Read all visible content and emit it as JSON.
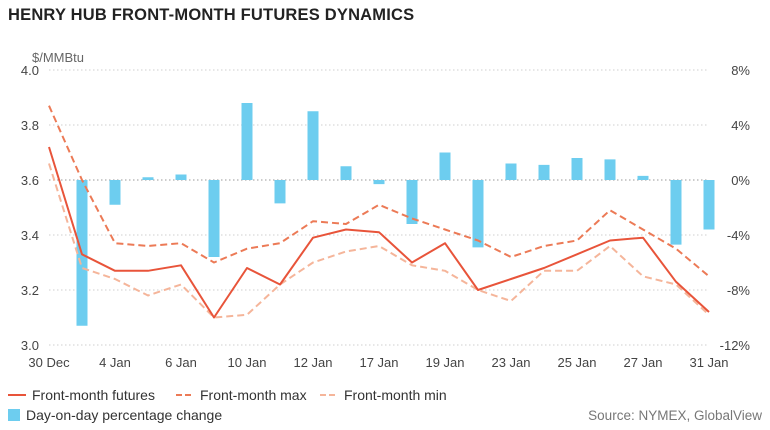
{
  "title": "HENRY HUB FRONT-MONTH FUTURES DYNAMICS",
  "unit_label": "$/MMBtu",
  "source": "Source: NYMEX, GlobalView",
  "colors": {
    "futures": "#e8543a",
    "max": "#ec7a56",
    "min": "#f5b59a",
    "bars": "#6dcdef",
    "grid": "#cfcfcf",
    "zero": "#999999"
  },
  "legend": {
    "futures": "Front-month futures",
    "max": "Front-month max",
    "min": "Front-month min",
    "bars": "Day-on-day percentage change"
  },
  "chart_data": {
    "type": "line",
    "x_tick_labels": [
      "30 Dec",
      "4 Jan",
      "6 Jan",
      "10 Jan",
      "12 Jan",
      "17 Jan",
      "19 Jan",
      "23 Jan",
      "25 Jan",
      "27 Jan",
      "31 Jan"
    ],
    "x_tick_index": [
      0,
      2,
      4,
      6,
      8,
      10,
      12,
      14,
      16,
      18,
      20
    ],
    "point_count": 21,
    "y_left": {
      "min": 3.0,
      "max": 4.0,
      "ticks": [
        "3.0",
        "3.2",
        "3.4",
        "3.6",
        "3.8",
        "4.0"
      ]
    },
    "y_right": {
      "min": -12,
      "max": 8,
      "ticks": [
        "-12%",
        "-8%",
        "-4%",
        "0%",
        "4%",
        "8%"
      ]
    },
    "series": [
      {
        "name": "Front-month futures",
        "axis": "left",
        "values": [
          3.72,
          3.33,
          3.27,
          3.27,
          3.29,
          3.1,
          3.28,
          3.22,
          3.39,
          3.42,
          3.41,
          3.3,
          3.37,
          3.2,
          3.24,
          3.28,
          3.33,
          3.38,
          3.39,
          3.23,
          3.12
        ]
      },
      {
        "name": "Front-month max",
        "axis": "left",
        "values": [
          3.87,
          3.6,
          3.37,
          3.36,
          3.37,
          3.3,
          3.35,
          3.37,
          3.45,
          3.44,
          3.51,
          3.46,
          3.42,
          3.38,
          3.32,
          3.36,
          3.38,
          3.49,
          3.42,
          3.35,
          3.25
        ]
      },
      {
        "name": "Front-month min",
        "axis": "left",
        "values": [
          3.66,
          3.28,
          3.24,
          3.18,
          3.22,
          3.1,
          3.11,
          3.22,
          3.3,
          3.34,
          3.36,
          3.29,
          3.27,
          3.2,
          3.16,
          3.27,
          3.27,
          3.36,
          3.25,
          3.22,
          3.11
        ]
      },
      {
        "name": "Day-on-day percentage change",
        "axis": "right",
        "kind": "bar",
        "values": [
          null,
          -10.6,
          -1.8,
          0.2,
          0.4,
          -5.6,
          5.6,
          -1.7,
          5.0,
          1.0,
          -0.3,
          -3.2,
          2.0,
          -4.9,
          1.2,
          1.1,
          1.6,
          1.5,
          0.3,
          -4.7,
          -3.6
        ]
      }
    ],
    "grid": true,
    "legend_position": "bottom"
  }
}
